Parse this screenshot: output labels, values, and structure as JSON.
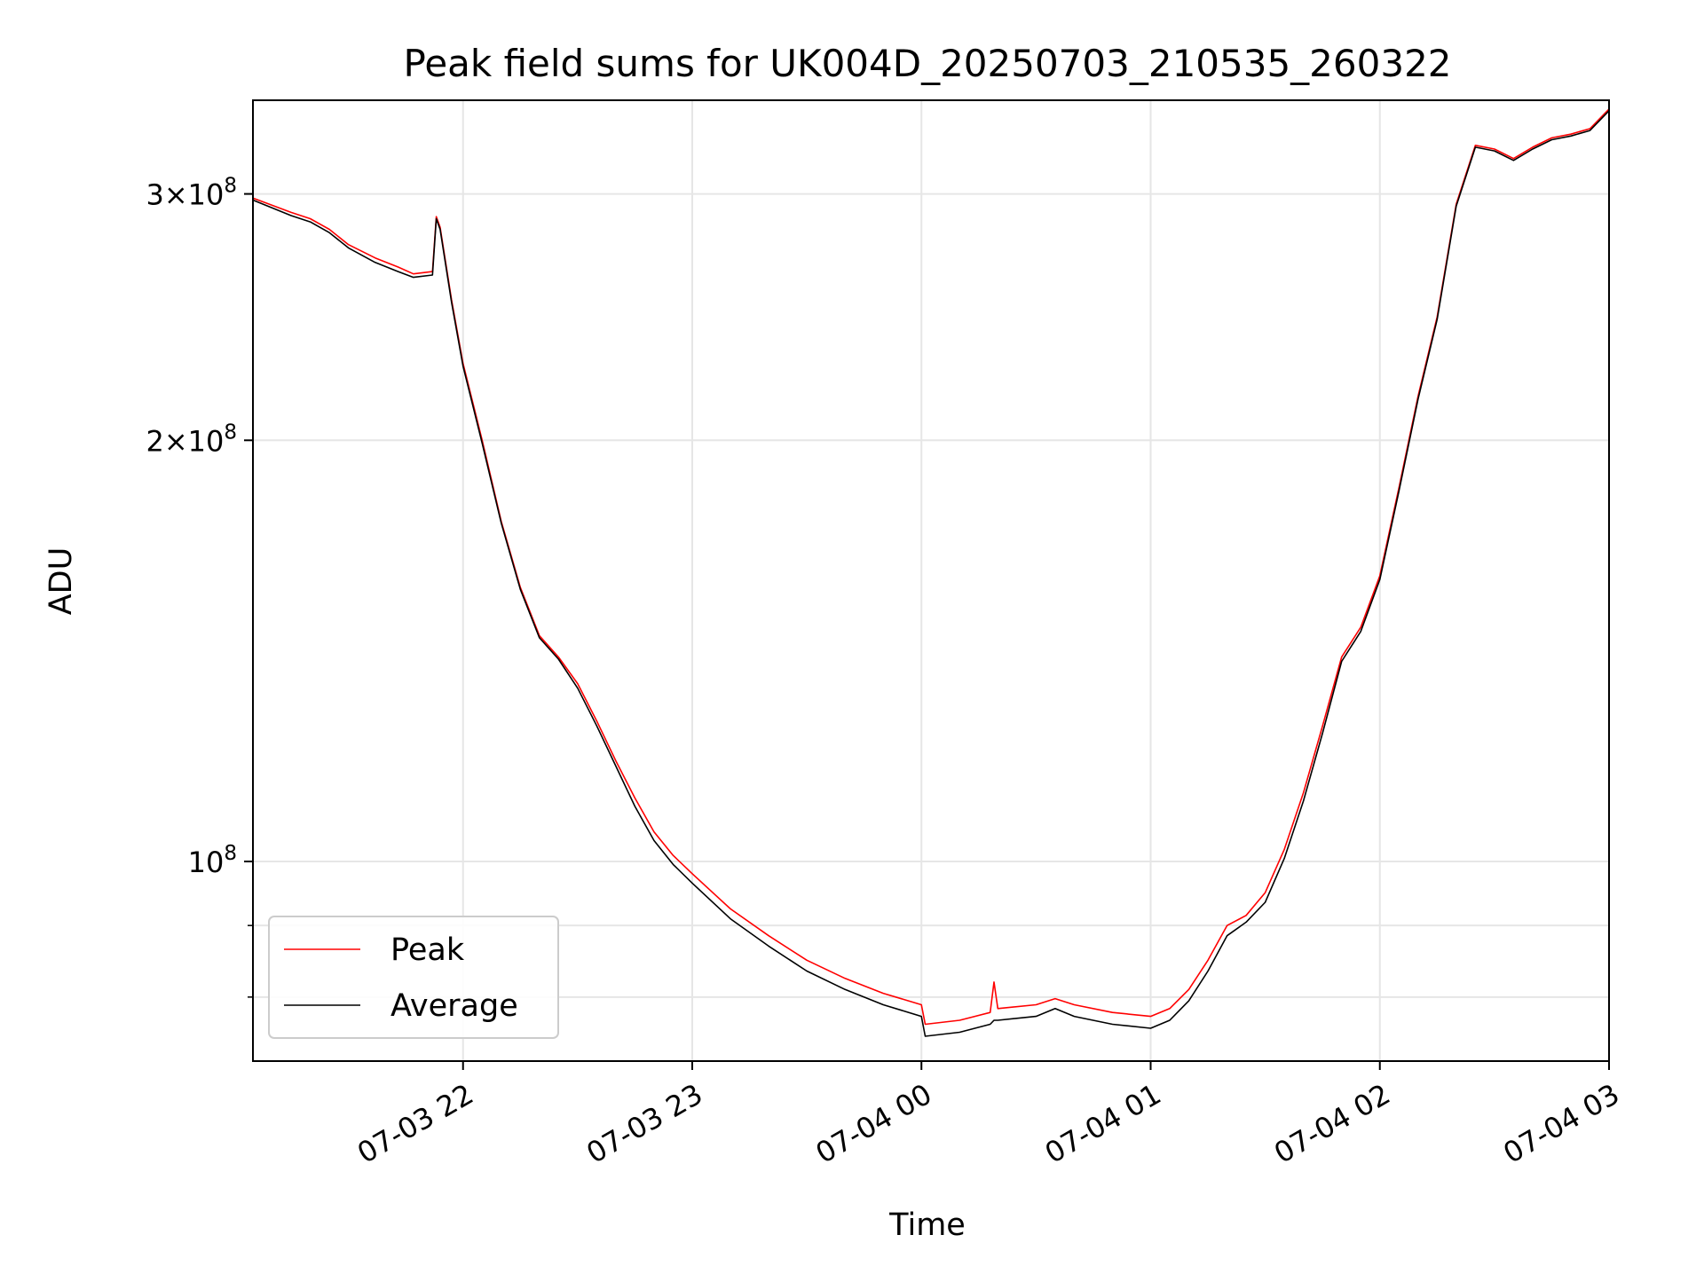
{
  "chart_data": {
    "type": "line",
    "title": "Peak field sums for UK004D_20250703_210535_260322",
    "xlabel": "Time",
    "ylabel": "ADU",
    "y_scale": "log",
    "xlim": [
      "2025-07-03 21:05",
      "2025-07-04 03:00"
    ],
    "ylim": [
      72000000,
      350000000
    ],
    "x_ticks": [
      {
        "value": "2025-07-03 22:00",
        "label": "07-03 22"
      },
      {
        "value": "2025-07-03 23:00",
        "label": "07-03 23"
      },
      {
        "value": "2025-07-04 00:00",
        "label": "07-04 00"
      },
      {
        "value": "2025-07-04 01:00",
        "label": "07-04 01"
      },
      {
        "value": "2025-07-04 02:00",
        "label": "07-04 02"
      },
      {
        "value": "2025-07-04 03:00",
        "label": "07-04 03"
      }
    ],
    "y_major_ticks": [
      {
        "value": 100000000,
        "mantissa": "",
        "exponent": "8",
        "base": "10"
      },
      {
        "value": 200000000,
        "mantissa": "2",
        "exponent": "8",
        "base": "10"
      },
      {
        "value": 300000000,
        "mantissa": "3",
        "exponent": "8",
        "base": "10"
      }
    ],
    "y_minor_gridlines": [
      80000000,
      90000000
    ],
    "grid": true,
    "legend_position": "lower-left",
    "series": [
      {
        "name": "Peak",
        "color": "#ff0000",
        "points": [
          [
            "2025-07-03 21:05",
            298000000
          ],
          [
            "2025-07-03 21:15",
            291000000
          ],
          [
            "2025-07-03 21:20",
            288000000
          ],
          [
            "2025-07-03 21:25",
            283000000
          ],
          [
            "2025-07-03 21:30",
            276000000
          ],
          [
            "2025-07-03 21:37",
            270000000
          ],
          [
            "2025-07-03 21:43",
            266000000
          ],
          [
            "2025-07-03 21:47",
            263000000
          ],
          [
            "2025-07-03 21:52",
            264000000
          ],
          [
            "2025-07-03 21:53",
            289000000
          ],
          [
            "2025-07-03 21:54",
            284000000
          ],
          [
            "2025-07-03 21:57",
            252000000
          ],
          [
            "2025-07-03 22:00",
            227000000
          ],
          [
            "2025-07-03 22:05",
            200000000
          ],
          [
            "2025-07-03 22:10",
            175000000
          ],
          [
            "2025-07-03 22:15",
            157000000
          ],
          [
            "2025-07-03 22:20",
            145000000
          ],
          [
            "2025-07-03 22:25",
            140000000
          ],
          [
            "2025-07-03 22:30",
            134000000
          ],
          [
            "2025-07-03 22:35",
            126000000
          ],
          [
            "2025-07-03 22:40",
            118000000
          ],
          [
            "2025-07-03 22:45",
            111000000
          ],
          [
            "2025-07-03 22:50",
            105000000
          ],
          [
            "2025-07-03 22:55",
            101000000
          ],
          [
            "2025-07-03 23:00",
            98000000
          ],
          [
            "2025-07-03 23:10",
            92500000
          ],
          [
            "2025-07-03 23:20",
            88500000
          ],
          [
            "2025-07-03 23:30",
            85000000
          ],
          [
            "2025-07-03 23:40",
            82500000
          ],
          [
            "2025-07-03 23:50",
            80500000
          ],
          [
            "2025-07-04 00:00",
            79000000
          ],
          [
            "2025-07-04 00:01",
            76500000
          ],
          [
            "2025-07-04 00:10",
            77000000
          ],
          [
            "2025-07-04 00:18",
            78000000
          ],
          [
            "2025-07-04 00:19",
            82000000
          ],
          [
            "2025-07-04 00:20",
            78500000
          ],
          [
            "2025-07-04 00:30",
            79000000
          ],
          [
            "2025-07-04 00:35",
            79800000
          ],
          [
            "2025-07-04 00:40",
            79000000
          ],
          [
            "2025-07-04 00:50",
            78000000
          ],
          [
            "2025-07-04 01:00",
            77500000
          ],
          [
            "2025-07-04 01:05",
            78500000
          ],
          [
            "2025-07-04 01:10",
            81000000
          ],
          [
            "2025-07-04 01:15",
            85000000
          ],
          [
            "2025-07-04 01:20",
            90000000
          ],
          [
            "2025-07-04 01:25",
            91500000
          ],
          [
            "2025-07-04 01:30",
            95000000
          ],
          [
            "2025-07-04 01:35",
            102000000
          ],
          [
            "2025-07-04 01:40",
            112000000
          ],
          [
            "2025-07-04 01:45",
            125000000
          ],
          [
            "2025-07-04 01:50",
            140000000
          ],
          [
            "2025-07-04 01:55",
            147000000
          ],
          [
            "2025-07-04 02:00",
            160000000
          ],
          [
            "2025-07-04 02:05",
            185000000
          ],
          [
            "2025-07-04 02:10",
            215000000
          ],
          [
            "2025-07-04 02:15",
            245000000
          ],
          [
            "2025-07-04 02:20",
            295000000
          ],
          [
            "2025-07-04 02:25",
            325000000
          ],
          [
            "2025-07-04 02:30",
            323000000
          ],
          [
            "2025-07-04 02:35",
            318000000
          ],
          [
            "2025-07-04 02:40",
            324000000
          ],
          [
            "2025-07-04 02:45",
            329000000
          ],
          [
            "2025-07-04 02:50",
            331000000
          ],
          [
            "2025-07-04 02:55",
            334000000
          ],
          [
            "2025-07-04 03:00",
            345000000
          ]
        ]
      },
      {
        "name": "Average",
        "color": "#000000",
        "points": [
          [
            "2025-07-03 21:05",
            297000000
          ],
          [
            "2025-07-03 21:15",
            289500000
          ],
          [
            "2025-07-03 21:20",
            286500000
          ],
          [
            "2025-07-03 21:25",
            281500000
          ],
          [
            "2025-07-03 21:30",
            274500000
          ],
          [
            "2025-07-03 21:37",
            268000000
          ],
          [
            "2025-07-03 21:43",
            264000000
          ],
          [
            "2025-07-03 21:47",
            261500000
          ],
          [
            "2025-07-03 21:52",
            262500000
          ],
          [
            "2025-07-03 21:53",
            288000000
          ],
          [
            "2025-07-03 21:54",
            283000000
          ],
          [
            "2025-07-03 21:57",
            251000000
          ],
          [
            "2025-07-03 22:00",
            226000000
          ],
          [
            "2025-07-03 22:05",
            199000000
          ],
          [
            "2025-07-03 22:10",
            174500000
          ],
          [
            "2025-07-03 22:15",
            156500000
          ],
          [
            "2025-07-03 22:20",
            144500000
          ],
          [
            "2025-07-03 22:25",
            139500000
          ],
          [
            "2025-07-03 22:30",
            133000000
          ],
          [
            "2025-07-03 22:35",
            125000000
          ],
          [
            "2025-07-03 22:40",
            117000000
          ],
          [
            "2025-07-03 22:45",
            109500000
          ],
          [
            "2025-07-03 22:50",
            103500000
          ],
          [
            "2025-07-03 22:55",
            99500000
          ],
          [
            "2025-07-03 23:00",
            96500000
          ],
          [
            "2025-07-03 23:10",
            91000000
          ],
          [
            "2025-07-03 23:20",
            87000000
          ],
          [
            "2025-07-03 23:30",
            83500000
          ],
          [
            "2025-07-03 23:40",
            81000000
          ],
          [
            "2025-07-03 23:50",
            79000000
          ],
          [
            "2025-07-04 00:00",
            77500000
          ],
          [
            "2025-07-04 00:01",
            75000000
          ],
          [
            "2025-07-04 00:10",
            75500000
          ],
          [
            "2025-07-04 00:18",
            76500000
          ],
          [
            "2025-07-04 00:19",
            77000000
          ],
          [
            "2025-07-04 00:20",
            77000000
          ],
          [
            "2025-07-04 00:30",
            77500000
          ],
          [
            "2025-07-04 00:35",
            78500000
          ],
          [
            "2025-07-04 00:40",
            77500000
          ],
          [
            "2025-07-04 00:50",
            76500000
          ],
          [
            "2025-07-04 01:00",
            76000000
          ],
          [
            "2025-07-04 01:05",
            77000000
          ],
          [
            "2025-07-04 01:10",
            79500000
          ],
          [
            "2025-07-04 01:15",
            83500000
          ],
          [
            "2025-07-04 01:20",
            88500000
          ],
          [
            "2025-07-04 01:25",
            90500000
          ],
          [
            "2025-07-04 01:30",
            93500000
          ],
          [
            "2025-07-04 01:35",
            100500000
          ],
          [
            "2025-07-04 01:40",
            110500000
          ],
          [
            "2025-07-04 01:45",
            123500000
          ],
          [
            "2025-07-04 01:50",
            139000000
          ],
          [
            "2025-07-04 01:55",
            146000000
          ],
          [
            "2025-07-04 02:00",
            159000000
          ],
          [
            "2025-07-04 02:05",
            184000000
          ],
          [
            "2025-07-04 02:10",
            214000000
          ],
          [
            "2025-07-04 02:15",
            244000000
          ],
          [
            "2025-07-04 02:20",
            294000000
          ],
          [
            "2025-07-04 02:25",
            324000000
          ],
          [
            "2025-07-04 02:30",
            322000000
          ],
          [
            "2025-07-04 02:35",
            317000000
          ],
          [
            "2025-07-04 02:40",
            323000000
          ],
          [
            "2025-07-04 02:45",
            328000000
          ],
          [
            "2025-07-04 02:50",
            330000000
          ],
          [
            "2025-07-04 02:55",
            333000000
          ],
          [
            "2025-07-04 03:00",
            344000000
          ]
        ]
      }
    ]
  }
}
